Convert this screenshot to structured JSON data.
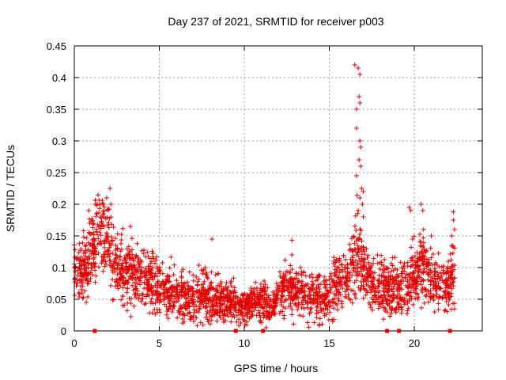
{
  "chart_data": {
    "type": "scatter",
    "title": "Day 237 of 2021, SRMTID for receiver p003",
    "xlabel": "GPS time / hours",
    "ylabel": "SRMTID / TECUs",
    "xlim": [
      0,
      24
    ],
    "ylim": [
      0,
      0.45
    ],
    "xticks": [
      0,
      5,
      10,
      15,
      20
    ],
    "yticks": [
      0,
      0.05,
      0.1,
      0.15,
      0.2,
      0.25,
      0.3,
      0.35,
      0.4,
      0.45
    ],
    "xtick_labels": [
      "0",
      "5",
      "10",
      "15",
      "20"
    ],
    "ytick_labels": [
      "0",
      "0.05",
      "0.1",
      "0.15",
      "0.2",
      "0.25",
      "0.3",
      "0.35",
      "0.4",
      "0.45"
    ],
    "grid": true,
    "marker": "plus",
    "color": "#e00000",
    "zero_markers_x": [
      1.2,
      9.5,
      11.1,
      18.4,
      19.1,
      22.1
    ],
    "envelope": [
      [
        0.0,
        0.09,
        0.035
      ],
      [
        0.3,
        0.085,
        0.035
      ],
      [
        0.8,
        0.11,
        0.045
      ],
      [
        1.2,
        0.14,
        0.05
      ],
      [
        1.5,
        0.165,
        0.05
      ],
      [
        2.0,
        0.14,
        0.05
      ],
      [
        2.5,
        0.1,
        0.045
      ],
      [
        3.0,
        0.09,
        0.04
      ],
      [
        4.0,
        0.085,
        0.04
      ],
      [
        5.0,
        0.07,
        0.035
      ],
      [
        6.0,
        0.06,
        0.03
      ],
      [
        7.0,
        0.05,
        0.03
      ],
      [
        8.0,
        0.055,
        0.03
      ],
      [
        9.0,
        0.05,
        0.025
      ],
      [
        10.0,
        0.035,
        0.02
      ],
      [
        11.0,
        0.05,
        0.025
      ],
      [
        11.5,
        0.035,
        0.02
      ],
      [
        12.5,
        0.07,
        0.03
      ],
      [
        13.5,
        0.06,
        0.03
      ],
      [
        14.5,
        0.05,
        0.03
      ],
      [
        15.5,
        0.075,
        0.035
      ],
      [
        16.2,
        0.09,
        0.035
      ],
      [
        16.6,
        0.12,
        0.05
      ],
      [
        17.0,
        0.11,
        0.045
      ],
      [
        17.5,
        0.07,
        0.035
      ],
      [
        18.5,
        0.065,
        0.035
      ],
      [
        19.5,
        0.07,
        0.035
      ],
      [
        20.0,
        0.09,
        0.04
      ],
      [
        20.5,
        0.1,
        0.045
      ],
      [
        21.0,
        0.09,
        0.04
      ],
      [
        21.5,
        0.07,
        0.035
      ],
      [
        22.0,
        0.07,
        0.035
      ],
      [
        22.4,
        0.1,
        0.045
      ]
    ],
    "spike_points": [
      {
        "x": 0.85,
        "y": 0.19
      },
      {
        "x": 0.9,
        "y": 0.17
      },
      {
        "x": 1.35,
        "y": 0.2
      },
      {
        "x": 1.7,
        "y": 0.2
      },
      {
        "x": 1.9,
        "y": 0.21
      },
      {
        "x": 2.1,
        "y": 0.225
      },
      {
        "x": 2.15,
        "y": 0.2
      },
      {
        "x": 3.3,
        "y": 0.165
      },
      {
        "x": 8.1,
        "y": 0.145
      },
      {
        "x": 12.8,
        "y": 0.143
      },
      {
        "x": 12.8,
        "y": 0.12
      },
      {
        "x": 16.5,
        "y": 0.42
      },
      {
        "x": 16.7,
        "y": 0.415
      },
      {
        "x": 16.8,
        "y": 0.405
      },
      {
        "x": 16.75,
        "y": 0.37
      },
      {
        "x": 16.8,
        "y": 0.36
      },
      {
        "x": 16.6,
        "y": 0.35
      },
      {
        "x": 16.6,
        "y": 0.32
      },
      {
        "x": 16.8,
        "y": 0.3
      },
      {
        "x": 16.85,
        "y": 0.29
      },
      {
        "x": 16.75,
        "y": 0.27
      },
      {
        "x": 16.85,
        "y": 0.26
      },
      {
        "x": 16.6,
        "y": 0.245
      },
      {
        "x": 16.9,
        "y": 0.225
      },
      {
        "x": 17.0,
        "y": 0.22
      },
      {
        "x": 16.8,
        "y": 0.21
      },
      {
        "x": 16.95,
        "y": 0.2
      },
      {
        "x": 16.7,
        "y": 0.19
      },
      {
        "x": 17.0,
        "y": 0.18
      },
      {
        "x": 19.7,
        "y": 0.195
      },
      {
        "x": 19.8,
        "y": 0.19
      },
      {
        "x": 20.4,
        "y": 0.2
      },
      {
        "x": 20.5,
        "y": 0.19
      },
      {
        "x": 21.0,
        "y": 0.15
      },
      {
        "x": 22.3,
        "y": 0.188
      },
      {
        "x": 22.3,
        "y": 0.175
      },
      {
        "x": 22.2,
        "y": 0.15
      }
    ],
    "sample_count": 2600
  }
}
